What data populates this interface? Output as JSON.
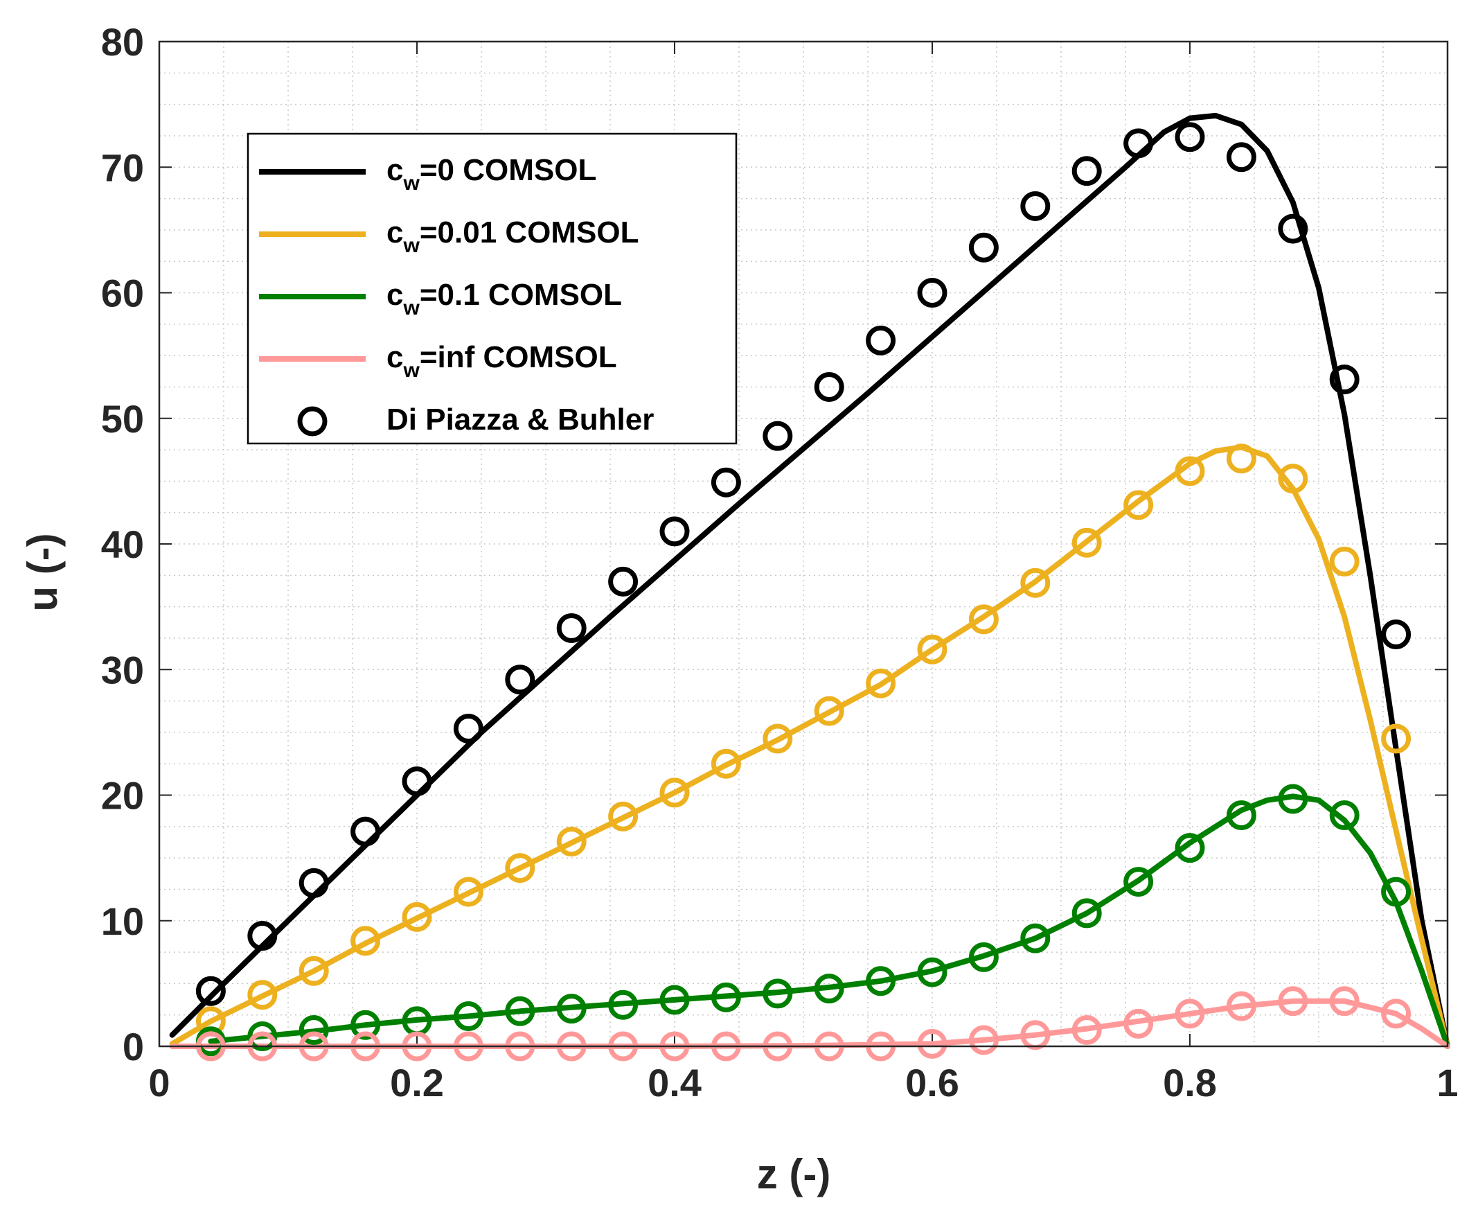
{
  "chart_data": {
    "type": "line",
    "xlabel": "z (-)",
    "ylabel": "u (-)",
    "xlim": [
      0,
      1
    ],
    "ylim": [
      0,
      80
    ],
    "xticks": [
      0,
      0.2,
      0.4,
      0.6,
      0.8,
      1
    ],
    "xtick_labels": [
      "0",
      "0.2",
      "0.4",
      "0.6",
      "0.8",
      "1"
    ],
    "yticks": [
      0,
      10,
      20,
      30,
      40,
      50,
      60,
      70,
      80
    ],
    "ytick_labels": [
      "0",
      "10",
      "20",
      "30",
      "40",
      "50",
      "60",
      "70",
      "80"
    ],
    "grid": "minor dotted",
    "legend_position": "top-left",
    "series": [
      {
        "name": "c_w=0 COMSOL",
        "legend_main": "c",
        "legend_sub": "w",
        "legend_rest": "=0 COMSOL",
        "color": "#000000",
        "style": "line",
        "x": [
          0.01,
          0.05,
          0.1,
          0.15,
          0.2,
          0.25,
          0.3,
          0.35,
          0.4,
          0.45,
          0.5,
          0.55,
          0.6,
          0.65,
          0.7,
          0.75,
          0.78,
          0.8,
          0.82,
          0.84,
          0.86,
          0.88,
          0.9,
          0.92,
          0.94,
          0.96,
          0.98,
          1.0
        ],
        "y": [
          0.9,
          5.0,
          10.0,
          15.0,
          20.0,
          25.0,
          29.6,
          34.2,
          38.7,
          43.2,
          47.6,
          52.0,
          56.5,
          61.0,
          65.5,
          70.0,
          72.8,
          73.9,
          74.1,
          73.4,
          71.3,
          67.2,
          60.4,
          50.3,
          37.5,
          23.7,
          10.0,
          0.0
        ]
      },
      {
        "name": "c_w=0.01 COMSOL",
        "legend_main": "c",
        "legend_sub": "w",
        "legend_rest": "=0.01 COMSOL",
        "color": "#EDB120",
        "style": "line",
        "x": [
          0.01,
          0.04,
          0.08,
          0.12,
          0.16,
          0.2,
          0.24,
          0.28,
          0.32,
          0.36,
          0.4,
          0.44,
          0.48,
          0.52,
          0.56,
          0.6,
          0.64,
          0.68,
          0.72,
          0.76,
          0.8,
          0.82,
          0.84,
          0.86,
          0.88,
          0.9,
          0.92,
          0.94,
          0.96,
          0.98,
          1.0
        ],
        "y": [
          0.2,
          2.0,
          4.0,
          6.0,
          8.2,
          10.2,
          12.2,
          14.2,
          16.2,
          18.2,
          20.2,
          22.4,
          24.4,
          26.6,
          28.8,
          31.6,
          34.2,
          37.0,
          40.2,
          43.4,
          46.4,
          47.4,
          47.7,
          47.0,
          44.4,
          40.4,
          34.2,
          26.0,
          17.2,
          8.5,
          0.0
        ]
      },
      {
        "name": "c_w=0.1 COMSOL",
        "legend_main": "c",
        "legend_sub": "w",
        "legend_rest": "=0.1 COMSOL",
        "color": "#008000",
        "style": "line",
        "x": [
          0.04,
          0.08,
          0.12,
          0.16,
          0.2,
          0.24,
          0.28,
          0.32,
          0.36,
          0.4,
          0.44,
          0.48,
          0.52,
          0.56,
          0.6,
          0.64,
          0.68,
          0.72,
          0.76,
          0.8,
          0.84,
          0.86,
          0.88,
          0.9,
          0.92,
          0.94,
          0.96,
          0.98,
          1.0
        ],
        "y": [
          0.4,
          0.8,
          1.2,
          1.7,
          2.1,
          2.4,
          2.8,
          3.1,
          3.4,
          3.7,
          4.0,
          4.3,
          4.7,
          5.2,
          6.0,
          7.2,
          8.6,
          10.6,
          13.2,
          16.2,
          18.8,
          19.6,
          19.9,
          19.6,
          18.0,
          15.4,
          11.5,
          6.0,
          0.0
        ]
      },
      {
        "name": "c_w=inf COMSOL",
        "legend_main": "c",
        "legend_sub": "w",
        "legend_rest": "=inf COMSOL",
        "color": "#FF9999",
        "style": "line",
        "x": [
          0.01,
          0.1,
          0.2,
          0.3,
          0.4,
          0.5,
          0.6,
          0.64,
          0.68,
          0.72,
          0.76,
          0.8,
          0.84,
          0.88,
          0.92,
          0.96,
          0.98,
          1.0
        ],
        "y": [
          0.0,
          0.0,
          0.0,
          0.0,
          0.0,
          0.05,
          0.2,
          0.5,
          0.9,
          1.4,
          2.0,
          2.6,
          3.2,
          3.6,
          3.6,
          2.6,
          1.4,
          0.0
        ]
      }
    ],
    "markers": [
      {
        "name": "Di Piazza & Buhler",
        "color": "#000000",
        "x": [
          0.04,
          0.08,
          0.12,
          0.16,
          0.2,
          0.24,
          0.28,
          0.32,
          0.36,
          0.4,
          0.44,
          0.48,
          0.52,
          0.56,
          0.6,
          0.64,
          0.68,
          0.72,
          0.76,
          0.8,
          0.84,
          0.88,
          0.92,
          0.96
        ],
        "y": [
          4.4,
          8.8,
          13.0,
          17.1,
          21.1,
          25.3,
          29.2,
          33.3,
          37.0,
          41.0,
          44.9,
          48.6,
          52.5,
          56.2,
          60.0,
          63.6,
          66.9,
          69.7,
          71.9,
          72.4,
          70.8,
          65.1,
          53.1,
          32.8
        ]
      },
      {
        "name": "Di Piazza & Buhler",
        "color": "#EDB120",
        "x": [
          0.04,
          0.08,
          0.12,
          0.16,
          0.2,
          0.24,
          0.28,
          0.32,
          0.36,
          0.4,
          0.44,
          0.48,
          0.52,
          0.56,
          0.6,
          0.64,
          0.68,
          0.72,
          0.76,
          0.8,
          0.84,
          0.88,
          0.92,
          0.96
        ],
        "y": [
          2.0,
          4.1,
          6.0,
          8.4,
          10.3,
          12.3,
          14.2,
          16.3,
          18.3,
          20.2,
          22.5,
          24.5,
          26.7,
          28.9,
          31.6,
          34.0,
          36.9,
          40.1,
          43.1,
          45.8,
          46.8,
          45.2,
          38.6,
          24.5
        ]
      },
      {
        "name": "Di Piazza & Buhler",
        "color": "#008000",
        "x": [
          0.04,
          0.08,
          0.12,
          0.16,
          0.2,
          0.24,
          0.28,
          0.32,
          0.36,
          0.4,
          0.44,
          0.48,
          0.52,
          0.56,
          0.6,
          0.64,
          0.68,
          0.72,
          0.76,
          0.8,
          0.84,
          0.88,
          0.92,
          0.96
        ],
        "y": [
          0.4,
          0.8,
          1.3,
          1.7,
          2.0,
          2.4,
          2.8,
          3.0,
          3.3,
          3.7,
          3.9,
          4.2,
          4.6,
          5.2,
          5.9,
          7.1,
          8.6,
          10.6,
          13.1,
          15.8,
          18.4,
          19.7,
          18.4,
          12.3
        ]
      },
      {
        "name": "Di Piazza & Buhler",
        "color": "#FF9999",
        "x": [
          0.04,
          0.08,
          0.12,
          0.16,
          0.2,
          0.24,
          0.28,
          0.32,
          0.36,
          0.4,
          0.44,
          0.48,
          0.52,
          0.56,
          0.6,
          0.64,
          0.68,
          0.72,
          0.76,
          0.8,
          0.84,
          0.88,
          0.92,
          0.96
        ],
        "y": [
          0.0,
          0.0,
          0.0,
          0.0,
          0.0,
          0.0,
          0.0,
          0.0,
          0.0,
          0.0,
          0.0,
          0.0,
          0.0,
          0.0,
          0.2,
          0.5,
          0.9,
          1.3,
          1.8,
          2.6,
          3.2,
          3.6,
          3.6,
          2.6
        ]
      }
    ],
    "legend": [
      {
        "main": "c",
        "sub": "w",
        "rest": "=0 COMSOL",
        "color": "#000000",
        "kind": "line"
      },
      {
        "main": "c",
        "sub": "w",
        "rest": "=0.01 COMSOL",
        "color": "#EDB120",
        "kind": "line"
      },
      {
        "main": "c",
        "sub": "w",
        "rest": "=0.1 COMSOL",
        "color": "#008000",
        "kind": "line"
      },
      {
        "main": "c",
        "sub": "w",
        "rest": "=inf COMSOL",
        "color": "#FF9999",
        "kind": "line"
      },
      {
        "main": "Di Piazza & Buhler",
        "sub": "",
        "rest": "",
        "color": "#000000",
        "kind": "marker"
      }
    ]
  }
}
